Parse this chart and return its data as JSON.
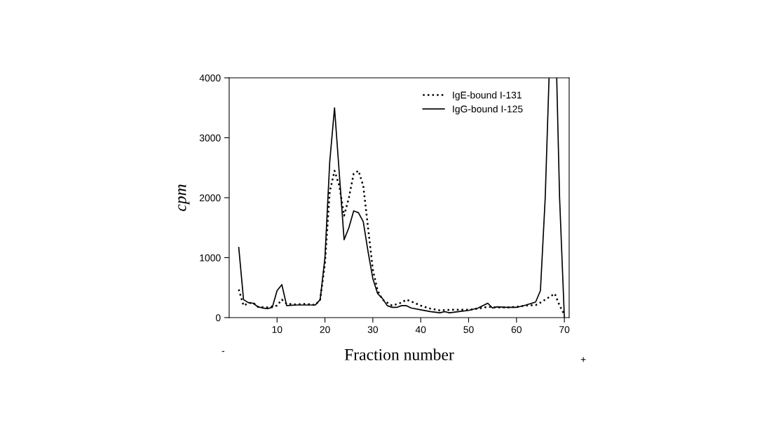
{
  "chart_data": {
    "type": "line",
    "xlabel": "Fraction number",
    "ylabel": "cpm",
    "xlim": [
      0,
      71
    ],
    "ylim": [
      0,
      4000
    ],
    "xticks": [
      10,
      20,
      30,
      40,
      50,
      60,
      70
    ],
    "yticks": [
      0,
      1000,
      2000,
      3000,
      4000
    ],
    "grid": false,
    "legend": "top right",
    "marker": "none",
    "annotations": [
      "-",
      "+"
    ],
    "series": [
      {
        "name": "IgE-bound I-131",
        "color": "#000000",
        "line_style": "dotted",
        "x": [
          2,
          3,
          4,
          5,
          6,
          8,
          10,
          11,
          12,
          14,
          16,
          18,
          19,
          20,
          21,
          22,
          23,
          24,
          25,
          26,
          27,
          28,
          29,
          30,
          31,
          32,
          34,
          36,
          37,
          38,
          40,
          42,
          44,
          46,
          48,
          50,
          52,
          54,
          56,
          58,
          60,
          62,
          64,
          65,
          66,
          67,
          68,
          69,
          70
        ],
        "values": [
          470,
          200,
          240,
          250,
          180,
          170,
          200,
          300,
          230,
          220,
          230,
          210,
          300,
          900,
          2100,
          2450,
          2200,
          1700,
          2000,
          2400,
          2450,
          2200,
          1500,
          800,
          450,
          300,
          200,
          250,
          300,
          270,
          200,
          150,
          120,
          130,
          130,
          130,
          150,
          180,
          170,
          170,
          180,
          200,
          210,
          250,
          300,
          350,
          400,
          200,
          50
        ]
      },
      {
        "name": "IgG-bound I-125",
        "color": "#000000",
        "line_style": "solid",
        "x": [
          2,
          3,
          4,
          5,
          6,
          7,
          8,
          9,
          10,
          11,
          12,
          14,
          16,
          18,
          19,
          20,
          21,
          22,
          23,
          24,
          25,
          26,
          27,
          28,
          29,
          30,
          31,
          32,
          33,
          34,
          35,
          36,
          37,
          38,
          40,
          42,
          44,
          45,
          46,
          48,
          50,
          52,
          54,
          55,
          56,
          58,
          60,
          62,
          64,
          65,
          66,
          66.8,
          67.5,
          68.4,
          69,
          70
        ],
        "values": [
          1170,
          300,
          250,
          240,
          180,
          160,
          150,
          170,
          450,
          550,
          200,
          210,
          210,
          210,
          300,
          1000,
          2600,
          3500,
          2400,
          1300,
          1500,
          1780,
          1750,
          1600,
          1100,
          650,
          400,
          320,
          200,
          170,
          170,
          200,
          200,
          160,
          130,
          100,
          80,
          100,
          80,
          100,
          120,
          160,
          240,
          160,
          180,
          170,
          170,
          210,
          260,
          450,
          2000,
          4000,
          null,
          4000,
          2000,
          0
        ]
      }
    ]
  }
}
